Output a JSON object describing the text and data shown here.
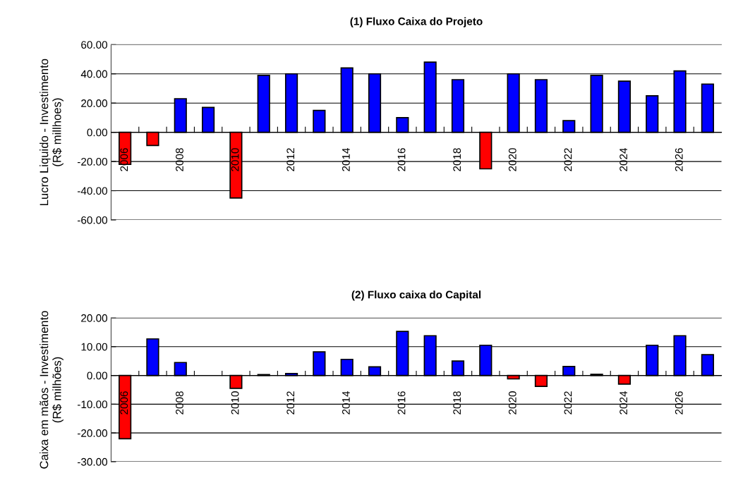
{
  "chart_data": [
    {
      "type": "bar",
      "title": "(1) Fluxo Caixa do Projeto",
      "ylabel": "Lucro Liquido - Investimento\n(R$ millhoes)",
      "categories": [
        "2006",
        null,
        "2008",
        null,
        "2010",
        null,
        "2012",
        null,
        "2014",
        null,
        "2016",
        null,
        "2018",
        null,
        "2020",
        null,
        "2022",
        null,
        "2024",
        null,
        "2026",
        null
      ],
      "values": [
        -22,
        -9,
        23,
        17,
        -45,
        39,
        40,
        15,
        44,
        40,
        10,
        48,
        36,
        -25,
        40,
        36,
        8,
        39,
        35,
        25,
        42,
        33
      ],
      "colors": [
        "#ff0000",
        "#ff0000",
        "#0000ff",
        "#0000ff",
        "#ff0000",
        "#0000ff",
        "#0000ff",
        "#0000ff",
        "#0000ff",
        "#0000ff",
        "#0000ff",
        "#0000ff",
        "#0000ff",
        "#ff0000",
        "#0000ff",
        "#0000ff",
        "#0000ff",
        "#0000ff",
        "#0000ff",
        "#0000ff",
        "#0000ff",
        "#0000ff"
      ],
      "ylim": [
        -60,
        60
      ],
      "yticks": [
        {
          "value": -60,
          "label": "-60.00"
        },
        {
          "value": -40,
          "label": "-40.00"
        },
        {
          "value": -20,
          "label": "-20.00"
        },
        {
          "value": 0,
          "label": "0.00"
        },
        {
          "value": 20,
          "label": "20.00"
        },
        {
          "value": 40,
          "label": "40.00"
        },
        {
          "value": 60,
          "label": "60.00"
        }
      ],
      "grid": "y",
      "legend": false
    },
    {
      "type": "bar",
      "title": "(2) Fluxo caixa do Capital",
      "ylabel": "Caixa em mãos - Investimento\n(R$ milhões)",
      "categories": [
        "2006",
        null,
        "2008",
        null,
        "2010",
        null,
        "2012",
        null,
        "2014",
        null,
        "2016",
        null,
        "2018",
        null,
        "2020",
        null,
        "2022",
        null,
        "2024",
        null,
        "2026",
        null
      ],
      "values": [
        -22,
        12.7,
        4.5,
        null,
        -4.5,
        0.3,
        0.7,
        8.2,
        5.6,
        3,
        15.3,
        13.8,
        5,
        10.5,
        -1.2,
        -3.8,
        3.1,
        0.4,
        -3,
        10.5,
        13.8,
        7.2
      ],
      "colors": [
        "#ff0000",
        "#0000ff",
        "#0000ff",
        "#0000ff",
        "#ff0000",
        "#0000ff",
        "#0000ff",
        "#0000ff",
        "#0000ff",
        "#0000ff",
        "#0000ff",
        "#0000ff",
        "#0000ff",
        "#0000ff",
        "#ff0000",
        "#ff0000",
        "#0000ff",
        "#0000ff",
        "#ff0000",
        "#0000ff",
        "#0000ff",
        "#0000ff"
      ],
      "ylim": [
        -30,
        20
      ],
      "yticks": [
        {
          "value": -30,
          "label": "-30.00"
        },
        {
          "value": -20,
          "label": "-20.00"
        },
        {
          "value": -10,
          "label": "-10.00"
        },
        {
          "value": 0,
          "label": "0.00"
        },
        {
          "value": 10,
          "label": "10.00"
        },
        {
          "value": 20,
          "label": "20.00"
        }
      ],
      "grid": "y",
      "legend": false
    }
  ]
}
